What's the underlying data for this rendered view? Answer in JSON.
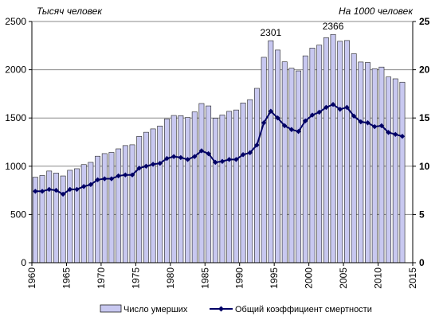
{
  "chart_data": {
    "type": "bar+line",
    "left_unit": "Тысяч человек",
    "right_unit": "На 1000 человек",
    "x": [
      1960,
      1961,
      1962,
      1963,
      1964,
      1965,
      1966,
      1967,
      1968,
      1969,
      1970,
      1971,
      1972,
      1973,
      1974,
      1975,
      1976,
      1977,
      1978,
      1979,
      1980,
      1981,
      1982,
      1983,
      1984,
      1985,
      1986,
      1987,
      1988,
      1989,
      1990,
      1991,
      1992,
      1993,
      1994,
      1995,
      1996,
      1997,
      1998,
      1999,
      2000,
      2001,
      2002,
      2003,
      2004,
      2005,
      2006,
      2007,
      2008,
      2009,
      2010,
      2011,
      2012,
      2013
    ],
    "x_ticks": [
      "1960",
      "1965",
      "1970",
      "1975",
      "1980",
      "1985",
      "1990",
      "1995",
      "2000",
      "2005",
      "2010",
      "2015"
    ],
    "x_range": [
      1960,
      2015
    ],
    "y_left_ticks": [
      "0",
      "500",
      "1000",
      "1500",
      "2000",
      "2500"
    ],
    "y_left_range": [
      0,
      2500
    ],
    "y_right_ticks": [
      "0",
      "5",
      "10",
      "15",
      "20",
      "25"
    ],
    "y_right_range": [
      0,
      25
    ],
    "series": [
      {
        "name": "Число умерших",
        "axis": "left",
        "kind": "bar",
        "color": "#c8c8f0",
        "values": [
          886,
          904,
          950,
          929,
          899,
          958,
          974,
          1017,
          1040,
          1104,
          1131,
          1143,
          1180,
          1214,
          1222,
          1309,
          1352,
          1387,
          1417,
          1490,
          1526,
          1524,
          1505,
          1563,
          1650,
          1625,
          1498,
          1531,
          1569,
          1583,
          1656,
          1690,
          1807,
          2129,
          2301,
          2204,
          2082,
          2016,
          1988,
          2144,
          2225,
          2255,
          2332,
          2366,
          2295,
          2303,
          2166,
          2080,
          2075,
          2010,
          2028,
          1925,
          1906,
          1871
        ]
      },
      {
        "name": "Общий коэффициент смертности",
        "axis": "right",
        "kind": "line",
        "color": "#000066",
        "values": [
          7.4,
          7.4,
          7.6,
          7.5,
          7.1,
          7.6,
          7.6,
          7.9,
          8.1,
          8.6,
          8.7,
          8.7,
          9.0,
          9.1,
          9.1,
          9.8,
          10.0,
          10.2,
          10.3,
          10.8,
          11.0,
          10.9,
          10.7,
          11.0,
          11.6,
          11.3,
          10.4,
          10.5,
          10.7,
          10.7,
          11.2,
          11.4,
          12.2,
          14.5,
          15.7,
          15.0,
          14.2,
          13.8,
          13.6,
          14.7,
          15.3,
          15.6,
          16.1,
          16.4,
          15.9,
          16.1,
          15.2,
          14.6,
          14.5,
          14.1,
          14.2,
          13.5,
          13.3,
          13.1
        ]
      }
    ],
    "annotations": [
      {
        "text": "2301",
        "x": 1994
      },
      {
        "text": "2366",
        "x": 2003
      }
    ],
    "legend_position": "bottom"
  }
}
